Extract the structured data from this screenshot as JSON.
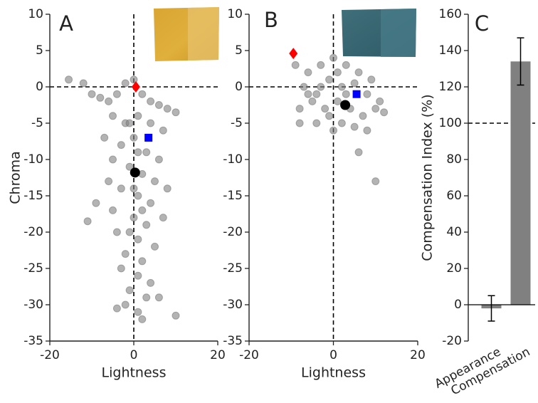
{
  "chart_data": [
    {
      "type": "scatter",
      "panel_label": "A",
      "xlabel": "Lightness",
      "ylabel": "Chroma",
      "xlim": [
        -20,
        20
      ],
      "ylim": [
        -35,
        10
      ],
      "xticks": [
        -20,
        0,
        20
      ],
      "yticks": [
        -35,
        -30,
        -25,
        -20,
        -15,
        -10,
        -5,
        0,
        5,
        10
      ],
      "hlines": [
        0
      ],
      "vlines": [
        0
      ],
      "series": [
        {
          "color": "#808080",
          "marker": "circle",
          "x": [
            -15.5,
            -12,
            -10,
            -8,
            -6,
            -4,
            -2,
            0,
            2,
            4,
            6,
            8,
            10,
            -5,
            -2,
            1,
            4,
            7,
            -7,
            -3,
            0,
            3,
            6,
            -5,
            -1,
            2,
            5,
            8,
            -6,
            -3,
            1,
            4,
            -9,
            -5,
            0,
            3,
            7,
            -11,
            -4,
            1,
            5,
            -2,
            2,
            -3,
            1,
            4,
            -1,
            3,
            -2,
            1,
            6,
            -4,
            10,
            2,
            0,
            -1,
            1,
            -1,
            2
          ],
          "values": [
            1,
            0.5,
            -1,
            -1.5,
            -2,
            -1,
            0.5,
            1,
            -1,
            -2,
            -2.5,
            -3,
            -3.5,
            -4,
            -5,
            -4,
            -5,
            -6,
            -7,
            -8,
            -7,
            -9,
            -10,
            -10,
            -11,
            -12,
            -13,
            -14,
            -13,
            -14,
            -15,
            -16,
            -16,
            -17,
            -18,
            -19,
            -18,
            -18.5,
            -20,
            -21,
            -22,
            -23,
            -24,
            -25,
            -26,
            -27,
            -28,
            -29,
            -30,
            -31,
            -29,
            -30.5,
            -31.5,
            -32,
            -14,
            -5,
            -9,
            -20,
            -17
          ]
        },
        {
          "color": "#ff0000",
          "marker": "diamond",
          "x": [
            0.5
          ],
          "values": [
            0
          ]
        },
        {
          "color": "#0000ff",
          "marker": "square",
          "x": [
            3.5
          ],
          "values": [
            -7
          ]
        },
        {
          "color": "#000000",
          "marker": "dot",
          "x": [
            0.3
          ],
          "values": [
            -11.8
          ]
        }
      ]
    },
    {
      "type": "scatter",
      "panel_label": "B",
      "xlabel": "Lightness",
      "xlim": [
        -20,
        20
      ],
      "ylim": [
        -35,
        10
      ],
      "xticks": [
        -20,
        0,
        20
      ],
      "yticks": [
        -35,
        -30,
        -25,
        -20,
        -15,
        -10,
        -5,
        0,
        5,
        10
      ],
      "hlines": [
        0
      ],
      "vlines": [
        0
      ],
      "series": [
        {
          "color": "#808080",
          "marker": "circle",
          "x": [
            -9,
            -6,
            -3,
            0,
            3,
            6,
            9,
            -7,
            -4,
            -1,
            2,
            5,
            8,
            11,
            -8,
            -5,
            -2,
            1,
            4,
            7,
            10,
            -4,
            -1,
            2,
            5,
            8,
            0,
            6,
            10,
            -8,
            12,
            3,
            -3,
            1,
            -6
          ],
          "values": [
            3,
            2,
            3,
            4,
            3,
            2,
            1,
            0,
            -1,
            1,
            0,
            0.5,
            -1,
            -2,
            -3,
            -2,
            -3,
            -2,
            -3,
            -4,
            -3,
            -5,
            -4,
            -5,
            -5.5,
            -6,
            -6,
            -9,
            -13,
            -5,
            -3.5,
            -1,
            0,
            2,
            -1
          ]
        },
        {
          "color": "#ff0000",
          "marker": "diamond",
          "x": [
            -9.5
          ],
          "values": [
            4.6
          ]
        },
        {
          "color": "#0000ff",
          "marker": "square",
          "x": [
            5.5
          ],
          "values": [
            -1
          ]
        },
        {
          "color": "#000000",
          "marker": "dot",
          "x": [
            2.8
          ],
          "values": [
            -2.5
          ]
        }
      ]
    },
    {
      "type": "bar",
      "panel_label": "C",
      "ylabel": "Compensation Index (%)",
      "categories": [
        "Appearance",
        "Compensation"
      ],
      "values": [
        -2,
        134
      ],
      "errors": [
        7,
        13
      ],
      "color": "#808080",
      "ylim": [
        -20,
        160
      ],
      "yticks": [
        -20,
        0,
        20,
        40,
        60,
        80,
        100,
        120,
        140,
        160
      ],
      "hlines": [
        100
      ]
    }
  ]
}
